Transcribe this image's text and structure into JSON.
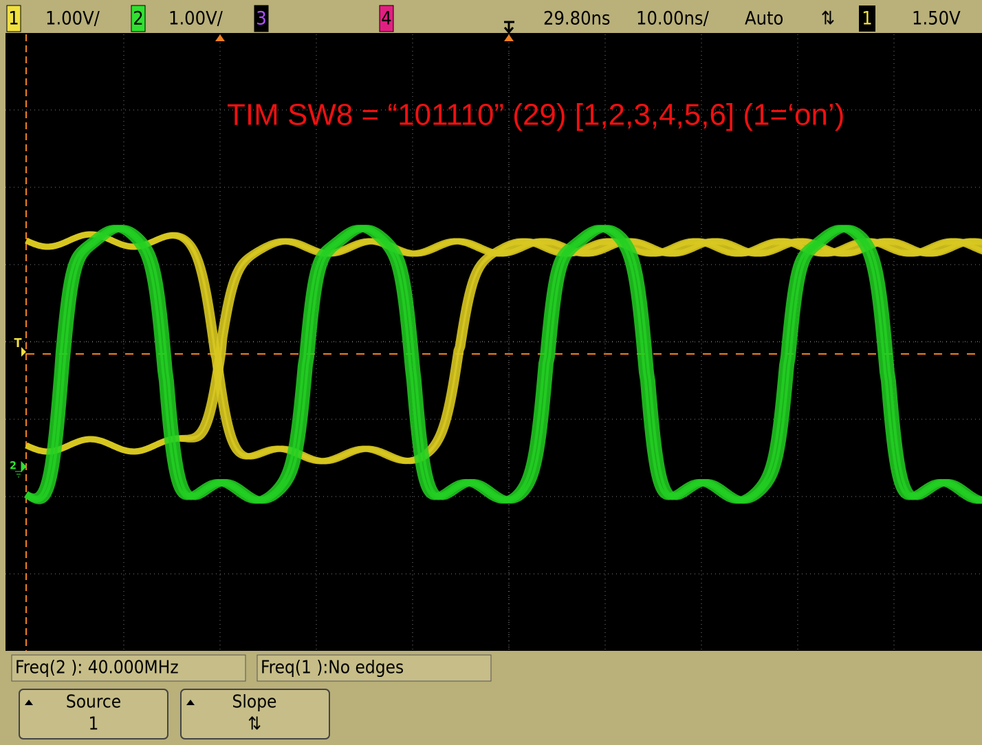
{
  "top_bar": {
    "ch1_label": "1",
    "ch1_scale": "1.00V/",
    "ch2_label": "2",
    "ch2_scale": "1.00V/",
    "ch3_label": "3",
    "ch4_label": "4",
    "delay": "29.80ns",
    "timebase": "10.00ns/",
    "trigger_mode": "Auto",
    "slope_symbol": "⇅",
    "trigger_source": "1",
    "trigger_level": "1.50V"
  },
  "screen": {
    "annotation": "TIM SW8 = “101110” (29) [1,2,3,4,5,6] (1=‘on’)",
    "trigger_marker": "T",
    "ch2_marker": "2"
  },
  "measurements": [
    "Freq(2 ): 40.000MHz",
    "Freq(1 ):No edges"
  ],
  "softkeys": [
    {
      "label": "Source",
      "value": "1"
    },
    {
      "label": "Slope",
      "value": "⇅"
    }
  ]
}
